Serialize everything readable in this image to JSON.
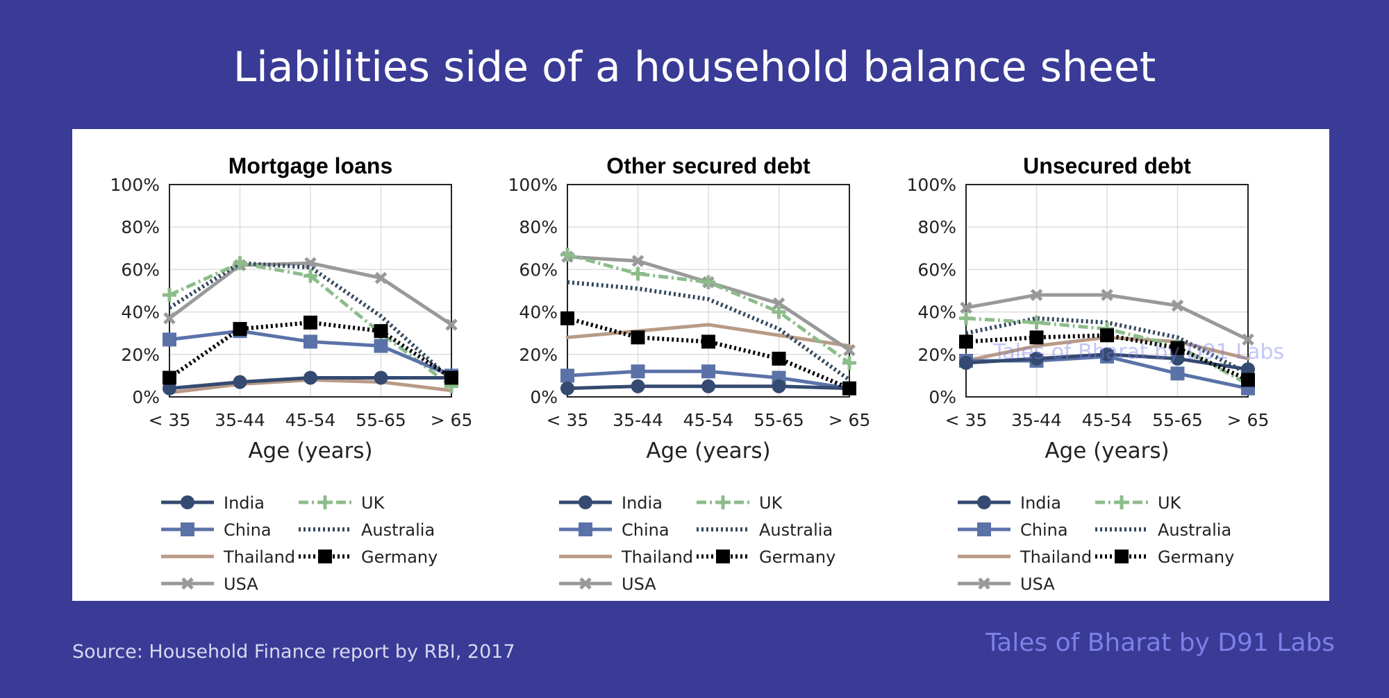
{
  "page": {
    "title": "Liabilities side of a household balance sheet",
    "source": "Source: Household Finance report by RBI, 2017",
    "watermark": "Tales of Bharat by D91 Labs"
  },
  "colors": {
    "background": "#3a3b96",
    "India": "#344a70",
    "China": "#5a72a8",
    "Thailand": "#b89a86",
    "USA": "#999999",
    "UK": "#8cbc8a",
    "Australia": "#33485f",
    "Germany": "#000000"
  },
  "chart_data": [
    {
      "type": "line",
      "title": "Mortgage loans",
      "xlabel": "Age (years)",
      "ylabel": "",
      "categories": [
        "< 35",
        "35-44",
        "45-54",
        "55-65",
        "> 65"
      ],
      "yticks": [
        "0%",
        "20%",
        "40%",
        "60%",
        "80%",
        "100%"
      ],
      "ylim": [
        0,
        100
      ],
      "grid": true,
      "series": [
        {
          "name": "India",
          "values": [
            4,
            7,
            9,
            9,
            9
          ]
        },
        {
          "name": "China",
          "values": [
            27,
            31,
            26,
            24,
            10
          ]
        },
        {
          "name": "Thailand",
          "values": [
            2,
            6,
            8,
            7,
            3
          ]
        },
        {
          "name": "USA",
          "values": [
            37,
            62,
            63,
            56,
            34
          ]
        },
        {
          "name": "UK",
          "values": [
            48,
            63,
            57,
            30,
            5
          ]
        },
        {
          "name": "Australia",
          "values": [
            42,
            63,
            61,
            38,
            8
          ]
        },
        {
          "name": "Germany",
          "values": [
            9,
            32,
            35,
            31,
            9
          ]
        }
      ]
    },
    {
      "type": "line",
      "title": "Other secured debt",
      "xlabel": "Age (years)",
      "ylabel": "",
      "categories": [
        "< 35",
        "35-44",
        "45-54",
        "55-65",
        "> 65"
      ],
      "yticks": [
        "0%",
        "20%",
        "40%",
        "60%",
        "80%",
        "100%"
      ],
      "ylim": [
        0,
        100
      ],
      "grid": true,
      "series": [
        {
          "name": "India",
          "values": [
            4,
            5,
            5,
            5,
            4
          ]
        },
        {
          "name": "China",
          "values": [
            10,
            12,
            12,
            9,
            4
          ]
        },
        {
          "name": "Thailand",
          "values": [
            28,
            31,
            34,
            29,
            24
          ]
        },
        {
          "name": "USA",
          "values": [
            66,
            64,
            54,
            44,
            22
          ]
        },
        {
          "name": "UK",
          "values": [
            67,
            58,
            54,
            40,
            16
          ]
        },
        {
          "name": "Australia",
          "values": [
            54,
            51,
            46,
            32,
            8
          ]
        },
        {
          "name": "Germany",
          "values": [
            37,
            28,
            26,
            18,
            4
          ]
        }
      ]
    },
    {
      "type": "line",
      "title": "Unsecured debt",
      "xlabel": "Age (years)",
      "ylabel": "",
      "categories": [
        "< 35",
        "35-44",
        "45-54",
        "55-65",
        "> 65"
      ],
      "yticks": [
        "0%",
        "20%",
        "40%",
        "60%",
        "80%",
        "100%"
      ],
      "ylim": [
        0,
        100
      ],
      "grid": true,
      "series": [
        {
          "name": "India",
          "values": [
            16,
            18,
            20,
            18,
            13
          ]
        },
        {
          "name": "China",
          "values": [
            17,
            17,
            19,
            11,
            4
          ]
        },
        {
          "name": "Thailand",
          "values": [
            17,
            24,
            28,
            26,
            18
          ]
        },
        {
          "name": "USA",
          "values": [
            42,
            48,
            48,
            43,
            27
          ]
        },
        {
          "name": "UK",
          "values": [
            37,
            35,
            32,
            24,
            6
          ]
        },
        {
          "name": "Australia",
          "values": [
            30,
            37,
            35,
            28,
            11
          ]
        },
        {
          "name": "Germany",
          "values": [
            26,
            28,
            29,
            23,
            8
          ]
        }
      ]
    }
  ],
  "legend": {
    "left_column": [
      "India",
      "China",
      "Thailand",
      "USA"
    ],
    "right_column": [
      "UK",
      "Australia",
      "Germany"
    ]
  }
}
